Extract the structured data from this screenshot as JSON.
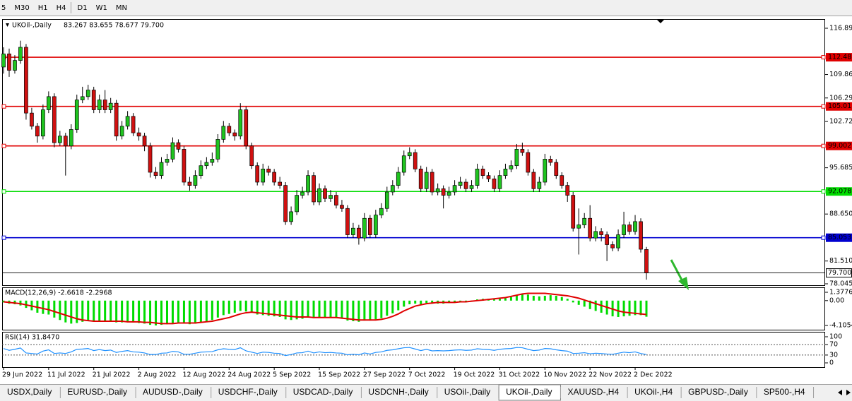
{
  "toolbar": {
    "timeframes": [
      "5",
      "M30",
      "H1",
      "H4",
      "D1",
      "W1",
      "MN"
    ]
  },
  "chart_data": [
    {
      "type": "candlestick",
      "title": "UKOil-,Daily",
      "ohlc_text": "83.267 83.655 78.677 79.700",
      "categories": [
        "29 Jun 2022",
        null,
        null,
        null,
        null,
        null,
        null,
        null,
        "11 Jul 2022",
        null,
        null,
        null,
        null,
        null,
        null,
        null,
        "21 Jul 2022",
        null,
        null,
        null,
        null,
        null,
        null,
        null,
        "2 Aug 2022",
        null,
        null,
        null,
        null,
        null,
        null,
        null,
        "12 Aug 2022",
        null,
        null,
        null,
        null,
        null,
        null,
        null,
        "24 Aug 2022",
        null,
        null,
        null,
        null,
        null,
        null,
        null,
        "5 Sep 2022",
        null,
        null,
        null,
        null,
        null,
        null,
        null,
        "15 Sep 2022",
        null,
        null,
        null,
        null,
        null,
        null,
        null,
        "27 Sep 2022",
        null,
        null,
        null,
        null,
        null,
        null,
        null,
        "7 Oct 2022",
        null,
        null,
        null,
        null,
        null,
        null,
        null,
        "19 Oct 2022",
        null,
        null,
        null,
        null,
        null,
        null,
        null,
        "31 Oct 2022",
        null,
        null,
        null,
        null,
        null,
        null,
        null,
        "10 Nov 2022",
        null,
        null,
        null,
        null,
        null,
        null,
        null,
        "22 Nov 2022",
        null,
        null,
        null,
        null,
        null,
        null,
        null,
        "2 Dec 2022",
        null,
        null
      ],
      "open": [
        111,
        113,
        110.5,
        112,
        114,
        104,
        102,
        100.5,
        104.5,
        106.5,
        99.5,
        100.5,
        99,
        101.5,
        106,
        106.5,
        107.5,
        104.5,
        106,
        104.5,
        105.5,
        100.5,
        102,
        103.5,
        101,
        100.5,
        99,
        95,
        94.5,
        96.5,
        97,
        99.5,
        98.5,
        93.5,
        93,
        94.5,
        96,
        96.5,
        97,
        100,
        102,
        101,
        100.5,
        104.5,
        99,
        96,
        93.5,
        95.5,
        95,
        93.5,
        93,
        87.5,
        89,
        91.5,
        92,
        94.5,
        90.5,
        92.5,
        91,
        91.5,
        90,
        89.5,
        85.5,
        86.5,
        85,
        88,
        85.5,
        88.5,
        89.5,
        92,
        93,
        95,
        97.5,
        98,
        95.5,
        92.5,
        95,
        92,
        92.5,
        91.5,
        92,
        93,
        93.5,
        92.5,
        93,
        95.5,
        94.5,
        94,
        92.5,
        94.5,
        95.5,
        96,
        98.5,
        98,
        95,
        92.5,
        93.5,
        97,
        96.5,
        94.5,
        93,
        91.5,
        86.5,
        87,
        88,
        85,
        86,
        85.5,
        84,
        83.5,
        85.5,
        87,
        86,
        87.5,
        83.267
      ],
      "high": [
        114,
        113.8,
        112.8,
        115,
        114.5,
        104.8,
        102.5,
        105.3,
        107.3,
        107,
        101.3,
        101,
        102.3,
        106.8,
        108,
        108.3,
        108,
        106.8,
        107.5,
        106.3,
        106,
        102.8,
        104.3,
        104,
        101.8,
        101,
        99.5,
        95.8,
        97.3,
        97.8,
        100.3,
        100,
        99,
        94.3,
        95.3,
        96.8,
        97.3,
        98,
        100.8,
        102.8,
        102.5,
        101.5,
        105.5,
        105,
        99.5,
        96.5,
        96.3,
        96,
        95.5,
        94.3,
        93.5,
        89.8,
        92.3,
        92.8,
        95.3,
        95,
        93.3,
        93,
        92.3,
        92,
        90.8,
        90,
        87.3,
        87,
        88.8,
        88.5,
        89.3,
        90.3,
        92.8,
        93.8,
        95.8,
        98.3,
        98.8,
        98.5,
        96,
        95.8,
        95.5,
        93.3,
        93,
        92.8,
        93.8,
        94.3,
        94,
        93.8,
        96.3,
        96,
        95,
        94.5,
        95.3,
        96.3,
        96.8,
        99.3,
        99.5,
        98.5,
        95.5,
        94.3,
        97.8,
        97.5,
        97,
        95,
        93.5,
        92,
        89.5,
        88.8,
        90,
        86.8,
        86.5,
        86,
        84.5,
        86.3,
        89,
        87.5,
        88.5,
        88,
        83.655
      ],
      "low": [
        110,
        109.5,
        110,
        111.5,
        103,
        101.5,
        99.5,
        100,
        104,
        98.8,
        99,
        94.5,
        98.5,
        101,
        105.5,
        106,
        104,
        104,
        104,
        104,
        99.8,
        100,
        101.5,
        100.5,
        99.8,
        98.2,
        94.2,
        94,
        94,
        96,
        96.5,
        98,
        93,
        92.2,
        92.5,
        94,
        95.5,
        96,
        96.5,
        99.5,
        100.5,
        99.8,
        100,
        98.5,
        95.5,
        93,
        93,
        94.5,
        93,
        92.5,
        87,
        87,
        88.5,
        91,
        91.5,
        90,
        90,
        90.5,
        90.5,
        89.5,
        89,
        85,
        85,
        84,
        84.5,
        85,
        85,
        88,
        89,
        91.5,
        92.5,
        94.5,
        97,
        95,
        92,
        92,
        91.5,
        91.5,
        89.5,
        91,
        91.5,
        92.5,
        92,
        92,
        92.5,
        94,
        93.5,
        92,
        92,
        94,
        95,
        95.5,
        97.5,
        94.5,
        92,
        92,
        93,
        96,
        94,
        92.5,
        90.5,
        86,
        82.5,
        86.5,
        84.5,
        84.5,
        84.5,
        81.5,
        83,
        83,
        85,
        85.5,
        85.5,
        82.8,
        78.677
      ],
      "close": [
        113,
        110.5,
        112,
        114,
        104,
        102,
        100.5,
        104.5,
        106.5,
        99.5,
        100.5,
        99,
        101.5,
        106,
        106.5,
        107.5,
        104.5,
        106,
        104.5,
        105.5,
        100.5,
        102,
        103.5,
        101,
        100.5,
        99,
        95,
        94.5,
        96.5,
        97,
        99.5,
        98.5,
        93.5,
        93,
        94.5,
        96,
        96.5,
        97,
        100,
        102,
        101,
        100.5,
        104.5,
        99,
        96,
        93.5,
        95.5,
        95,
        93.5,
        93,
        87.5,
        89,
        91.5,
        92,
        94.5,
        90.5,
        92.5,
        91,
        91.5,
        90,
        89.5,
        85.5,
        86.5,
        85,
        88,
        85.5,
        88.5,
        89.5,
        92,
        93,
        95,
        97.5,
        98,
        95.5,
        92.5,
        95,
        92,
        92.5,
        91.5,
        92,
        93,
        93.5,
        92.5,
        93,
        95.5,
        94.5,
        94,
        92.5,
        94.5,
        95.5,
        96,
        98.5,
        98,
        95,
        92.5,
        93.5,
        97,
        96.5,
        94.5,
        93,
        91.5,
        86.5,
        87,
        88,
        85,
        86,
        85.5,
        84,
        83.5,
        85.5,
        87,
        86,
        87.5,
        83.3,
        79.7
      ],
      "up_color": "#1fc41f",
      "down_color": "#d01010",
      "ylim": [
        77.83,
        118.29
      ],
      "yticks": [
        116.895,
        {
          "value": 109.86,
          "label": "109.860"
        },
        106.295,
        {
          "value": 102.72,
          "label": "102.720"
        },
        95.685,
        {
          "value": 88.65,
          "label": "88.650"
        },
        {
          "value": 81.51,
          "label": "81.510"
        },
        78.045
      ],
      "levels": [
        {
          "value": 112.486,
          "color": "#e00000"
        },
        {
          "value": 105.011,
          "color": "#e00000"
        },
        {
          "value": 99.002,
          "color": "#e00000"
        },
        {
          "value": 92.078,
          "color": "#00dc00"
        },
        {
          "value": 85.053,
          "color": "#0000d0"
        }
      ],
      "current_price": {
        "value": 79.7,
        "label": "79.700"
      }
    },
    {
      "type": "macd",
      "title": "MACD(12,26,9) -2.6618 -2.2968",
      "values": [
        -0.3,
        -0.5,
        -0.6,
        -0.8,
        -1.2,
        -1.6,
        -2.0,
        -2.2,
        -2.3,
        -2.8,
        -3.2,
        -3.6,
        -3.8,
        -3.7,
        -3.5,
        -3.3,
        -3.4,
        -3.3,
        -3.4,
        -3.4,
        -3.6,
        -3.6,
        -3.5,
        -3.6,
        -3.7,
        -3.8,
        -4.0,
        -4.1,
        -4.0,
        -3.9,
        -3.7,
        -3.6,
        -3.8,
        -3.9,
        -3.8,
        -3.6,
        -3.4,
        -3.2,
        -2.8,
        -2.4,
        -2.2,
        -2.0,
        -1.7,
        -1.8,
        -2.0,
        -2.3,
        -2.4,
        -2.5,
        -2.6,
        -2.7,
        -3.1,
        -3.2,
        -3.1,
        -3.0,
        -2.8,
        -2.9,
        -2.8,
        -2.8,
        -2.8,
        -2.9,
        -3.0,
        -3.3,
        -3.4,
        -3.5,
        -3.3,
        -3.3,
        -3.1,
        -2.9,
        -2.5,
        -2.1,
        -1.6,
        -1.0,
        -0.6,
        -0.5,
        -0.6,
        -0.4,
        -0.5,
        -0.5,
        -0.5,
        -0.4,
        -0.3,
        -0.2,
        -0.2,
        -0.1,
        0.2,
        0.3,
        0.3,
        0.2,
        0.3,
        0.4,
        0.6,
        0.9,
        1.1,
        1.0,
        0.8,
        0.7,
        0.8,
        0.9,
        0.8,
        0.6,
        0.3,
        -0.3,
        -0.7,
        -1.0,
        -1.4,
        -1.7,
        -2.0,
        -2.3,
        -2.6,
        -2.7,
        -2.6,
        -2.5,
        -2.4,
        -2.4,
        -2.6618
      ],
      "signal": [
        -0.2,
        -0.3,
        -0.4,
        -0.5,
        -0.7,
        -0.9,
        -1.1,
        -1.3,
        -1.5,
        -1.8,
        -2.1,
        -2.4,
        -2.7,
        -3.0,
        -3.2,
        -3.3,
        -3.4,
        -3.4,
        -3.4,
        -3.4,
        -3.4,
        -3.4,
        -3.5,
        -3.5,
        -3.5,
        -3.6,
        -3.6,
        -3.7,
        -3.8,
        -3.8,
        -3.8,
        -3.7,
        -3.7,
        -3.7,
        -3.7,
        -3.6,
        -3.5,
        -3.4,
        -3.2,
        -3.0,
        -2.8,
        -2.5,
        -2.2,
        -2.0,
        -1.9,
        -2.0,
        -2.1,
        -2.2,
        -2.3,
        -2.4,
        -2.5,
        -2.6,
        -2.7,
        -2.7,
        -2.7,
        -2.8,
        -2.8,
        -2.8,
        -2.8,
        -2.8,
        -2.9,
        -3.0,
        -3.1,
        -3.2,
        -3.2,
        -3.2,
        -3.2,
        -3.1,
        -2.9,
        -2.6,
        -2.2,
        -1.7,
        -1.3,
        -0.9,
        -0.7,
        -0.5,
        -0.4,
        -0.3,
        -0.3,
        -0.3,
        -0.3,
        -0.2,
        -0.2,
        -0.1,
        0.0,
        0.1,
        0.2,
        0.3,
        0.4,
        0.5,
        0.7,
        0.9,
        1.1,
        1.2,
        1.2,
        1.2,
        1.2,
        1.1,
        1.0,
        0.9,
        0.8,
        0.6,
        0.4,
        0.1,
        -0.2,
        -0.5,
        -0.8,
        -1.1,
        -1.4,
        -1.7,
        -1.9,
        -2.0,
        -2.1,
        -2.2,
        -2.2968
      ],
      "color": "#00dc00",
      "signal_color": "#e00000",
      "ylim": [
        -4.805,
        2.194
      ],
      "yticks": [
        1.3776,
        {
          "value": 0,
          "label": "0.00"
        },
        -4.1054
      ]
    },
    {
      "type": "line",
      "title": "RSI(14) 31.8470",
      "values": [
        55,
        48,
        52,
        57,
        38,
        36,
        34,
        45,
        50,
        36,
        38,
        36,
        42,
        52,
        53,
        55,
        47,
        51,
        47,
        49,
        40,
        44,
        47,
        42,
        41,
        38,
        32,
        32,
        37,
        38,
        44,
        42,
        33,
        33,
        37,
        41,
        42,
        43,
        50,
        54,
        52,
        51,
        58,
        46,
        41,
        36,
        41,
        40,
        37,
        36,
        28,
        32,
        38,
        39,
        45,
        38,
        42,
        39,
        40,
        38,
        37,
        31,
        33,
        31,
        38,
        34,
        40,
        42,
        48,
        50,
        54,
        58,
        59,
        53,
        47,
        52,
        46,
        47,
        46,
        47,
        49,
        50,
        48,
        49,
        54,
        52,
        51,
        48,
        52,
        54,
        55,
        59,
        58,
        52,
        47,
        49,
        55,
        54,
        50,
        47,
        45,
        36,
        37,
        39,
        35,
        37,
        36,
        34,
        33,
        37,
        41,
        39,
        42,
        36,
        31.847
      ],
      "color": "#1e90ff",
      "ylim": [
        -16.2,
        118.9
      ],
      "yticks": [
        100,
        70,
        30,
        0
      ],
      "levels": [
        70,
        30
      ]
    }
  ],
  "tabs": {
    "items": [
      "USDX,Daily",
      "EURUSD-,Daily",
      "AUDUSD-,Daily",
      "USDCHF-,Daily",
      "USDCAD-,Daily",
      "USDCNH-,Daily",
      "USOil-,Daily",
      "UKOil-,Daily",
      "XAUUSD-,H4",
      "UKOil-,H4",
      "GBPUSD-,Daily",
      "SP500-,H4"
    ],
    "active": 7
  }
}
